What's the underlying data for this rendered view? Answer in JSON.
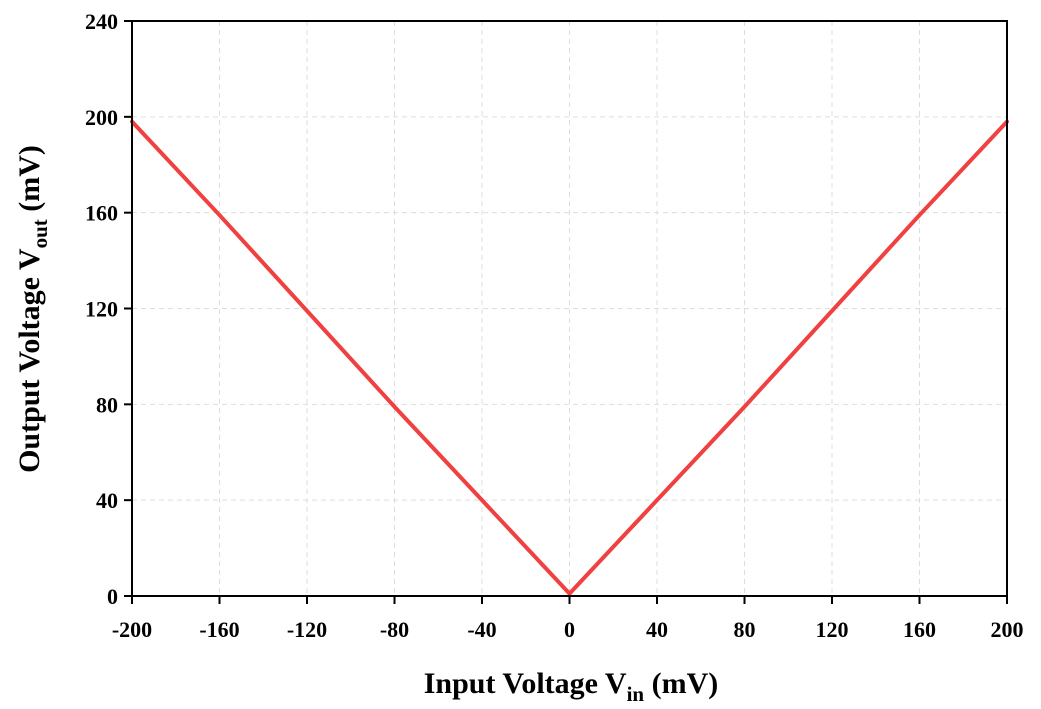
{
  "chart_data": {
    "type": "line",
    "title": "",
    "xlabel": {
      "main": "Input Voltage V",
      "sub": "in",
      "unit": " (mV)"
    },
    "ylabel": {
      "main": "Output Voltage V",
      "sub": "out",
      "unit": " (mV)"
    },
    "xlim": [
      -200,
      200
    ],
    "ylim": [
      0,
      240
    ],
    "xticks": [
      -200,
      -160,
      -120,
      -80,
      -40,
      0,
      40,
      80,
      120,
      160,
      200
    ],
    "yticks": [
      0,
      40,
      80,
      120,
      160,
      200,
      240
    ],
    "grid": true,
    "legend": false,
    "series": [
      {
        "color": "#f04040",
        "x": [
          -200,
          -160,
          -120,
          -80,
          -40,
          0,
          40,
          80,
          120,
          160,
          200
        ],
        "y": [
          198,
          159,
          119,
          79,
          40,
          1,
          40,
          79,
          119,
          159,
          198
        ]
      }
    ]
  },
  "colors": {
    "line": "#f04040",
    "grid": "#dddddd",
    "axis": "#000000"
  }
}
